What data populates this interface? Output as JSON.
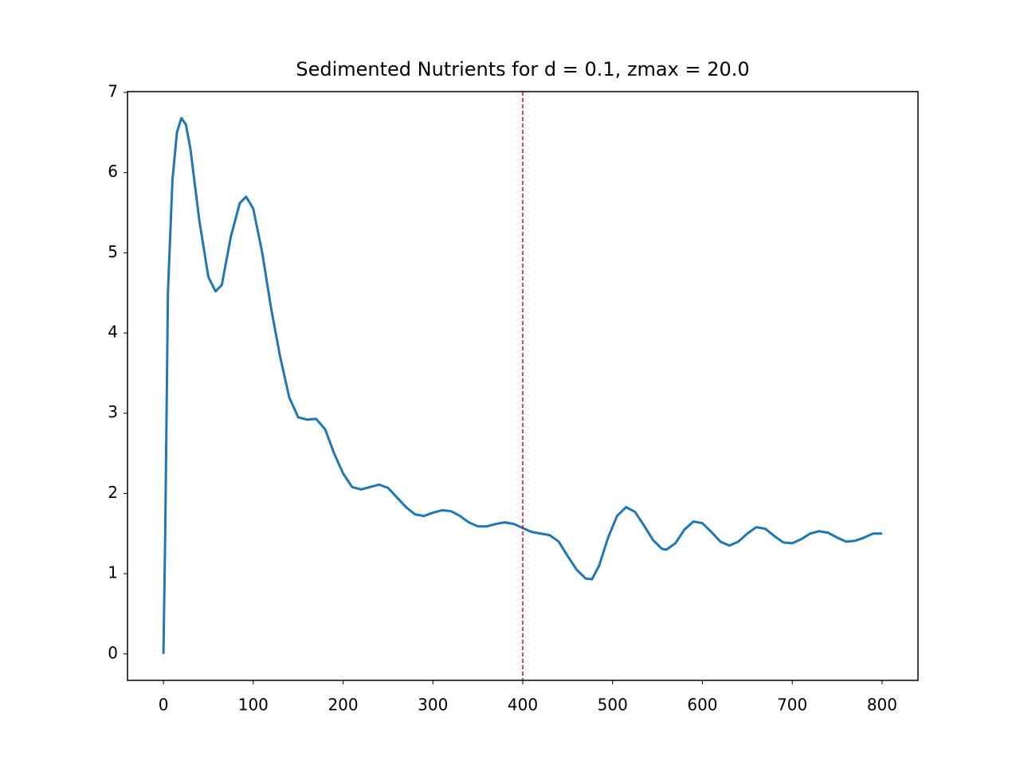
{
  "chart_data": {
    "type": "line",
    "title": "Sedimented Nutrients for d = 0.1, zmax = 20.0",
    "x": [
      0,
      2,
      5,
      10,
      15,
      20,
      25,
      30,
      40,
      50,
      58,
      65,
      75,
      85,
      92,
      100,
      110,
      120,
      130,
      140,
      150,
      160,
      170,
      180,
      190,
      200,
      210,
      220,
      230,
      240,
      250,
      260,
      270,
      280,
      290,
      300,
      310,
      320,
      330,
      340,
      350,
      360,
      370,
      380,
      390,
      400,
      410,
      420,
      430,
      440,
      450,
      460,
      470,
      477,
      485,
      495,
      505,
      515,
      525,
      535,
      545,
      555,
      560,
      570,
      580,
      590,
      600,
      610,
      620,
      630,
      640,
      650,
      660,
      670,
      680,
      690,
      700,
      710,
      720,
      730,
      740,
      750,
      760,
      770,
      780,
      790,
      800
    ],
    "series": [
      {
        "color": "#1f77b4",
        "values": [
          0,
          1.5,
          4.5,
          5.9,
          6.5,
          6.68,
          6.6,
          6.3,
          5.4,
          4.7,
          4.52,
          4.6,
          5.2,
          5.62,
          5.7,
          5.55,
          5.0,
          4.3,
          3.7,
          3.2,
          2.95,
          2.92,
          2.93,
          2.8,
          2.5,
          2.25,
          2.08,
          2.05,
          2.08,
          2.11,
          2.07,
          1.95,
          1.83,
          1.74,
          1.72,
          1.76,
          1.79,
          1.78,
          1.72,
          1.64,
          1.59,
          1.59,
          1.62,
          1.64,
          1.62,
          1.57,
          1.52,
          1.5,
          1.48,
          1.4,
          1.22,
          1.05,
          0.94,
          0.93,
          1.1,
          1.45,
          1.72,
          1.83,
          1.77,
          1.6,
          1.42,
          1.31,
          1.3,
          1.38,
          1.55,
          1.65,
          1.63,
          1.52,
          1.4,
          1.35,
          1.4,
          1.5,
          1.58,
          1.56,
          1.47,
          1.39,
          1.38,
          1.43,
          1.5,
          1.53,
          1.51,
          1.45,
          1.4,
          1.41,
          1.45,
          1.5,
          1.5
        ]
      }
    ],
    "vline": {
      "x": 400,
      "color": "#ff0000"
    },
    "xlim": [
      -40,
      840
    ],
    "xticks": [
      0,
      100,
      200,
      300,
      400,
      500,
      600,
      700,
      800
    ],
    "ylim": [
      -0.33,
      7.01
    ],
    "yticks": [
      0,
      1,
      2,
      3,
      4,
      5,
      6,
      7
    ]
  }
}
